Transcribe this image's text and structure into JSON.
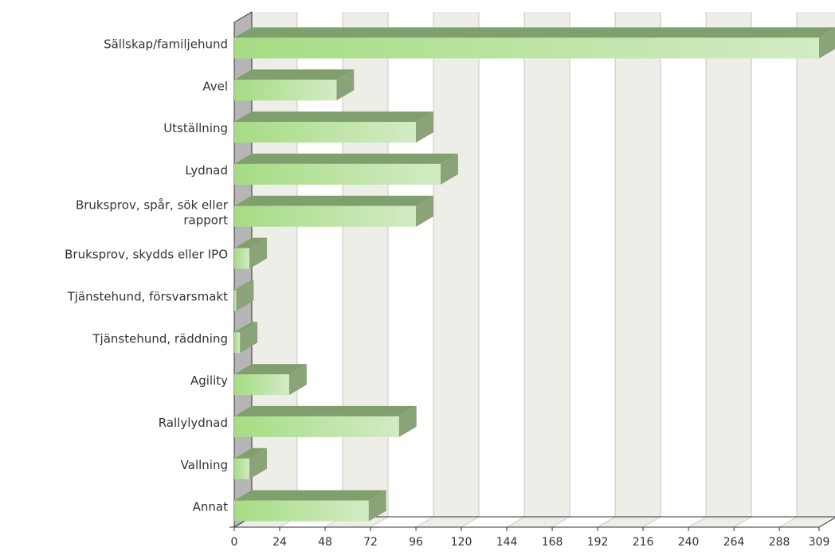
{
  "chart_data": {
    "type": "bar",
    "orientation": "horizontal",
    "style": "3d",
    "categories": [
      "Sällskap/familjehund",
      "Avel",
      "Utställning",
      "Lydnad",
      "Bruksprov, spår, sök eller rapport",
      "Bruksprov, skydds eller IPO",
      "Tjänstehund, försvarsmakt",
      "Tjänstehund, räddning",
      "Agility",
      "Rallylydnad",
      "Vallning",
      "Annat"
    ],
    "category_lines": [
      [
        "Sällskap/familjehund"
      ],
      [
        "Avel"
      ],
      [
        "Utställning"
      ],
      [
        "Lydnad"
      ],
      [
        "Bruksprov, spår, sök eller",
        "rapport"
      ],
      [
        "Bruksprov, skydds eller IPO"
      ],
      [
        "Tjänstehund, försvarsmakt"
      ],
      [
        "Tjänstehund, räddning"
      ],
      [
        "Agility"
      ],
      [
        "Rallylydnad"
      ],
      [
        "Vallning"
      ],
      [
        "Annat"
      ]
    ],
    "values": [
      309,
      54,
      96,
      109,
      96,
      8,
      1,
      3,
      29,
      87,
      8,
      71
    ],
    "x_ticks": [
      0,
      24,
      48,
      72,
      96,
      120,
      144,
      168,
      192,
      216,
      240,
      264,
      288,
      309
    ],
    "xlim": [
      0,
      309
    ],
    "title": "",
    "xlabel": "",
    "ylabel": "",
    "grid": true,
    "legend": "none",
    "colors": {
      "bar_light": "#d2ebc4",
      "bar_dark": "#a6dc84",
      "bar_top": "#7f9f6c",
      "bar_side": "#8aa378",
      "band_shade": "#eeeee9",
      "band_white": "#ffffff",
      "grid_line": "#c8c8c0",
      "left_wall": "#b5b5b5",
      "axis_line": "#333333"
    }
  }
}
